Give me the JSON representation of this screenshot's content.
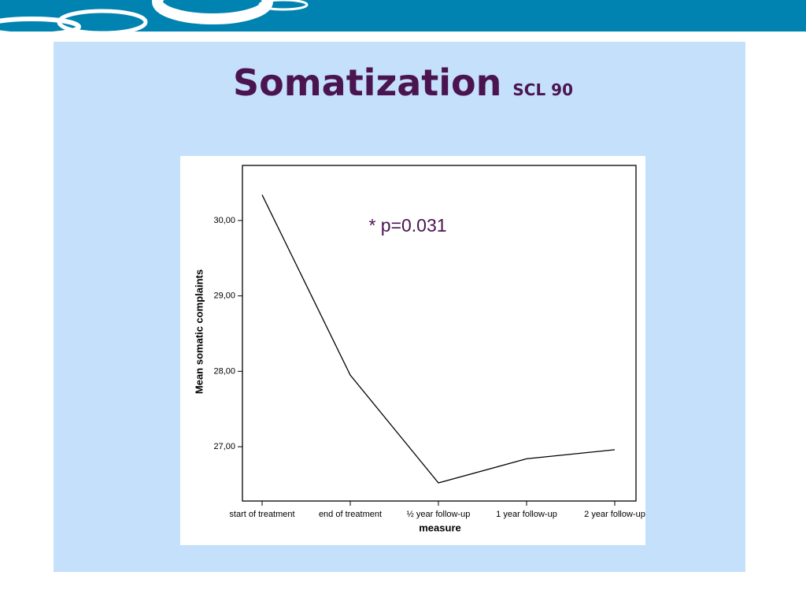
{
  "chart_data": {
    "type": "line",
    "title": "Somatization",
    "subtitle": "SCL 90",
    "annotation": "* p=0.031",
    "x_label": "measure",
    "y_label": "Mean somatic complaints",
    "categories": [
      "start of treatment",
      "end of treatment",
      "½ year follow-up",
      "1 year follow-up",
      "2 year follow-up"
    ],
    "values": [
      30.34,
      27.95,
      26.52,
      26.84,
      26.96
    ],
    "color": "#000000",
    "ylim": [
      26.28,
      30.73
    ],
    "yticks": [
      {
        "value": 27,
        "label": "27,00"
      },
      {
        "value": 28,
        "label": "28,00"
      },
      {
        "value": 29,
        "label": "29,00"
      },
      {
        "value": 30,
        "label": "30,00"
      }
    ]
  }
}
